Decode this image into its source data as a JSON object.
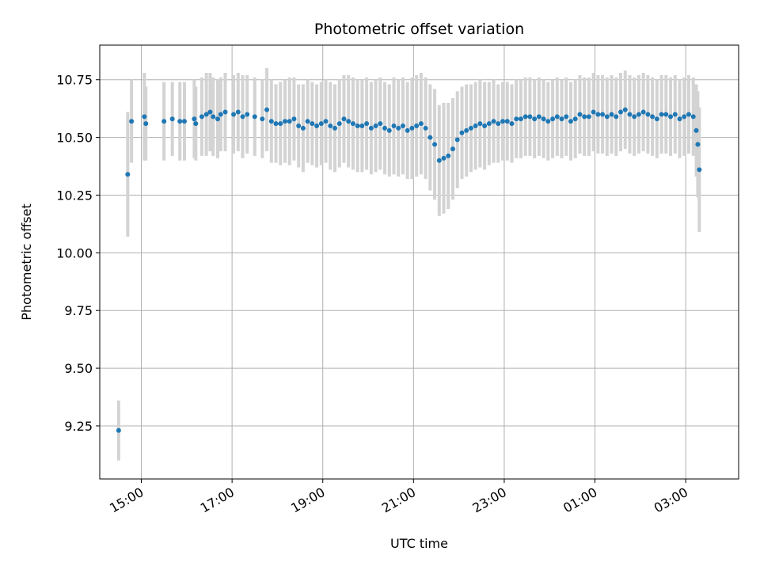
{
  "chart_data": {
    "type": "scatter",
    "title": "Photometric offset variation",
    "xlabel": "UTC time",
    "ylabel": "Photometric offset",
    "x_axis": {
      "min": "14:05",
      "max": "04:10",
      "ticks": [
        "15:00",
        "17:00",
        "19:00",
        "21:00",
        "23:00",
        "01:00",
        "03:00"
      ]
    },
    "y_axis": {
      "min": 9.02,
      "max": 10.9,
      "ticks": [
        "9.25",
        "9.50",
        "9.75",
        "10.00",
        "10.25",
        "10.50",
        "10.75"
      ]
    },
    "grid": true,
    "colors": {
      "point": "#1f77b4",
      "errorbar": "#d3d3d3",
      "grid": "#b0b0b0"
    },
    "series": [
      {
        "x": [
          "14:30",
          "14:42",
          "14:47",
          "15:04",
          "15:06",
          "15:30",
          "15:41",
          "15:51",
          "15:57",
          "16:10",
          "16:12",
          "16:20",
          "16:26",
          "16:31",
          "16:35",
          "16:41",
          "16:45",
          "16:51",
          "17:02",
          "17:08",
          "17:14",
          "17:20",
          "17:30",
          "17:40",
          "17:46",
          "17:52",
          "17:58",
          "18:04",
          "18:10",
          "18:16",
          "18:22",
          "18:28",
          "18:34",
          "18:40",
          "18:46",
          "18:52",
          "18:58",
          "19:04",
          "19:10",
          "19:16",
          "19:22",
          "19:28",
          "19:34",
          "19:40",
          "19:46",
          "19:52",
          "19:58",
          "20:04",
          "20:10",
          "20:16",
          "20:22",
          "20:28",
          "20:34",
          "20:40",
          "20:46",
          "20:52",
          "20:58",
          "21:04",
          "21:10",
          "21:16",
          "21:22",
          "21:28",
          "21:34",
          "21:40",
          "21:46",
          "21:52",
          "21:58",
          "22:04",
          "22:10",
          "22:16",
          "22:22",
          "22:28",
          "22:34",
          "22:40",
          "22:46",
          "22:52",
          "22:58",
          "23:04",
          "23:10",
          "23:16",
          "23:22",
          "23:28",
          "23:34",
          "23:40",
          "23:46",
          "23:52",
          "23:58",
          "00:04",
          "00:10",
          "00:16",
          "00:22",
          "00:28",
          "00:34",
          "00:40",
          "00:46",
          "00:52",
          "00:58",
          "01:04",
          "01:10",
          "01:16",
          "01:22",
          "01:28",
          "01:34",
          "01:40",
          "01:46",
          "01:52",
          "01:58",
          "02:04",
          "02:10",
          "02:16",
          "02:22",
          "02:28",
          "02:34",
          "02:40",
          "02:46",
          "02:52",
          "02:58",
          "03:04",
          "03:10",
          "03:14",
          "03:16",
          "03:18"
        ],
        "y": [
          9.23,
          10.34,
          10.57,
          10.59,
          10.56,
          10.57,
          10.58,
          10.57,
          10.57,
          10.58,
          10.56,
          10.59,
          10.6,
          10.61,
          10.59,
          10.58,
          10.6,
          10.61,
          10.6,
          10.61,
          10.59,
          10.6,
          10.59,
          10.58,
          10.62,
          10.57,
          10.56,
          10.56,
          10.57,
          10.57,
          10.58,
          10.55,
          10.54,
          10.57,
          10.56,
          10.55,
          10.56,
          10.57,
          10.55,
          10.54,
          10.56,
          10.58,
          10.57,
          10.56,
          10.55,
          10.55,
          10.56,
          10.54,
          10.55,
          10.56,
          10.54,
          10.53,
          10.55,
          10.54,
          10.55,
          10.53,
          10.54,
          10.55,
          10.56,
          10.54,
          10.5,
          10.47,
          10.4,
          10.41,
          10.42,
          10.45,
          10.49,
          10.52,
          10.53,
          10.54,
          10.55,
          10.56,
          10.55,
          10.56,
          10.57,
          10.56,
          10.57,
          10.57,
          10.56,
          10.58,
          10.58,
          10.59,
          10.59,
          10.58,
          10.59,
          10.58,
          10.57,
          10.58,
          10.59,
          10.58,
          10.59,
          10.57,
          10.58,
          10.6,
          10.59,
          10.59,
          10.61,
          10.6,
          10.6,
          10.59,
          10.6,
          10.59,
          10.61,
          10.62,
          10.6,
          10.59,
          10.6,
          10.61,
          10.6,
          10.59,
          10.58,
          10.6,
          10.6,
          10.59,
          10.6,
          10.58,
          10.59,
          10.6,
          10.59,
          10.53,
          10.47,
          10.36
        ],
        "err": [
          0.13,
          0.27,
          0.18,
          0.19,
          0.16,
          0.17,
          0.16,
          0.17,
          0.17,
          0.17,
          0.16,
          0.17,
          0.18,
          0.17,
          0.17,
          0.17,
          0.16,
          0.17,
          0.17,
          0.17,
          0.18,
          0.17,
          0.17,
          0.17,
          0.18,
          0.18,
          0.17,
          0.18,
          0.18,
          0.19,
          0.18,
          0.18,
          0.19,
          0.18,
          0.18,
          0.18,
          0.18,
          0.18,
          0.19,
          0.19,
          0.19,
          0.19,
          0.2,
          0.2,
          0.2,
          0.2,
          0.2,
          0.2,
          0.2,
          0.2,
          0.2,
          0.2,
          0.21,
          0.21,
          0.21,
          0.21,
          0.22,
          0.22,
          0.22,
          0.22,
          0.23,
          0.24,
          0.24,
          0.24,
          0.23,
          0.22,
          0.21,
          0.2,
          0.2,
          0.19,
          0.19,
          0.19,
          0.19,
          0.18,
          0.18,
          0.17,
          0.17,
          0.17,
          0.17,
          0.17,
          0.17,
          0.17,
          0.17,
          0.17,
          0.17,
          0.17,
          0.17,
          0.17,
          0.17,
          0.17,
          0.17,
          0.17,
          0.17,
          0.17,
          0.17,
          0.17,
          0.17,
          0.17,
          0.17,
          0.17,
          0.17,
          0.17,
          0.17,
          0.17,
          0.17,
          0.17,
          0.17,
          0.17,
          0.17,
          0.17,
          0.17,
          0.17,
          0.17,
          0.17,
          0.17,
          0.17,
          0.17,
          0.17,
          0.17,
          0.2,
          0.23,
          0.27
        ]
      }
    ]
  }
}
